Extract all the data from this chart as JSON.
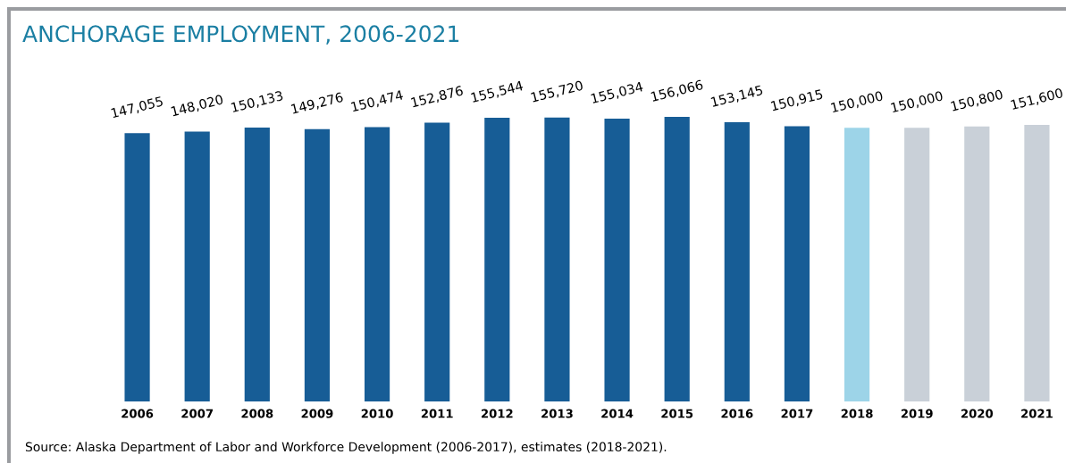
{
  "chart_data": {
    "type": "bar",
    "title": "ANCHORAGE EMPLOYMENT, 2006-2021",
    "categories": [
      "2006",
      "2007",
      "2008",
      "2009",
      "2010",
      "2011",
      "2012",
      "2013",
      "2014",
      "2015",
      "2016",
      "2017",
      "2018",
      "2019",
      "2020",
      "2021"
    ],
    "values": [
      147055,
      148020,
      150133,
      149276,
      150474,
      152876,
      155544,
      155720,
      155034,
      156066,
      153145,
      150915,
      150000,
      150000,
      150800,
      151600
    ],
    "colors": [
      "#175d96",
      "#175d96",
      "#175d96",
      "#175d96",
      "#175d96",
      "#175d96",
      "#175d96",
      "#175d96",
      "#175d96",
      "#175d96",
      "#175d96",
      "#175d96",
      "#9dd4e8",
      "#c9d0d8",
      "#c9d0d8",
      "#c9d0d8"
    ],
    "value_labels": [
      "147,055",
      "148,020",
      "150,133",
      "149,276",
      "150,474",
      "152,876",
      "155,544",
      "155,720",
      "155,034",
      "156,066",
      "153,145",
      "150,915",
      "150,000",
      "150,000",
      "150,800",
      "151,600"
    ],
    "grid": false,
    "legend": false,
    "tick_labels": "x",
    "annotations": [
      "Source: Alaska Department of Labor and Workforce Development (2006-2017), estimates (2018-2021)."
    ]
  }
}
